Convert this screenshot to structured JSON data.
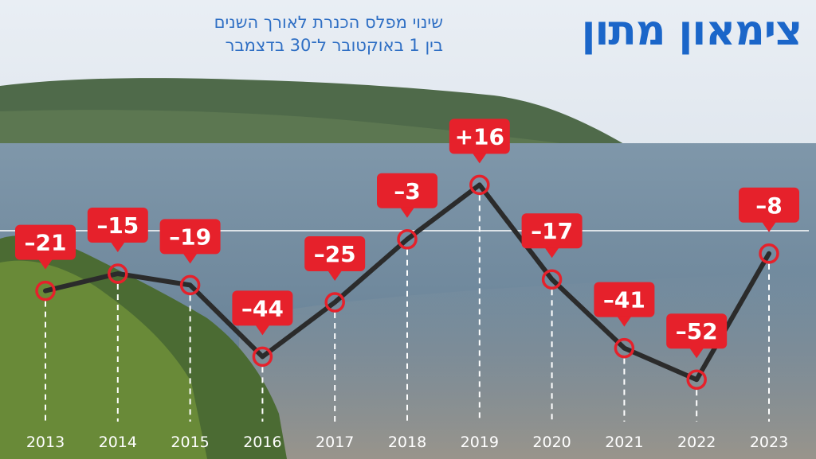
{
  "header": {
    "title": "צימאון מתון",
    "subtitle_line1": "שינוי מפלס הכנרת לאורך השנים",
    "subtitle_line2": "בין 1 באוקטובר ל־30 בדצמבר"
  },
  "colors": {
    "accent_title": "#1b66c9",
    "label_red": "#e6212b",
    "line": "#2b2b2b",
    "marker": "#e6212b"
  },
  "chart_data": {
    "type": "line",
    "title": "צימאון מתון",
    "subtitle": "שינוי מפלס הכנרת לאורך השנים בין 1 באוקטובר ל־30 בדצמבר",
    "xlabel": "",
    "ylabel": "",
    "categories": [
      "2013",
      "2014",
      "2015",
      "2016",
      "2017",
      "2018",
      "2019",
      "2020",
      "2021",
      "2022",
      "2023"
    ],
    "values": [
      -21,
      -15,
      -19,
      -44,
      -25,
      -3,
      16,
      -17,
      -41,
      -52,
      -8
    ],
    "data_labels": [
      "–21",
      "–15",
      "–19",
      "–44",
      "–25",
      "–3",
      "+16",
      "–17",
      "–41",
      "–52",
      "–8"
    ],
    "reference_line": 0,
    "ylim": [
      -60,
      20
    ],
    "grid": false,
    "legend": "none"
  }
}
